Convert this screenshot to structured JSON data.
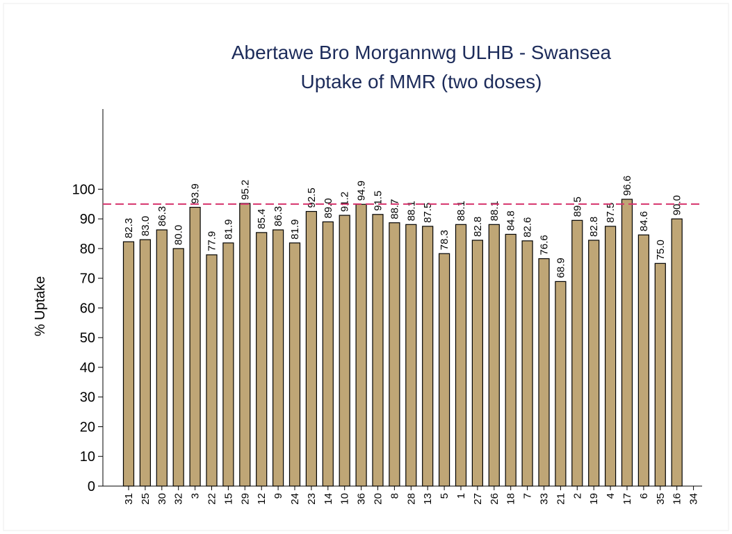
{
  "chart_data": {
    "type": "bar",
    "title": "Abertawe Bro Morgannwg ULHB - Swansea",
    "subtitle": "Uptake of MMR (two doses)",
    "y_label": "% Uptake",
    "categories": [
      "31",
      "25",
      "30",
      "32",
      "3",
      "22",
      "15",
      "29",
      "12",
      "9",
      "24",
      "23",
      "14",
      "10",
      "36",
      "20",
      "8",
      "28",
      "13",
      "5",
      "1",
      "27",
      "26",
      "18",
      "7",
      "33",
      "21",
      "2",
      "19",
      "4",
      "17",
      "6",
      "35",
      "16",
      "34"
    ],
    "values": [
      82.3,
      83.0,
      86.3,
      80.0,
      93.9,
      77.9,
      81.9,
      95.2,
      85.4,
      86.3,
      81.9,
      92.5,
      89.0,
      91.2,
      94.9,
      91.5,
      88.7,
      88.1,
      87.5,
      78.3,
      88.1,
      82.8,
      88.1,
      84.8,
      82.6,
      76.6,
      68.9,
      89.5,
      82.8,
      87.5,
      96.6,
      84.6,
      75.0,
      90.0,
      null
    ],
    "value_labels": [
      "82.3",
      "83.0",
      "86.3",
      "80.0",
      "93.9",
      "77.9",
      "81.9",
      "95.2",
      "85.4",
      "86.3",
      "81.9",
      "92.5",
      "89.0",
      "91.2",
      "94.9",
      "91.5",
      "88.7",
      "88.1",
      "87.5",
      "78.3",
      "88.1",
      "82.8",
      "88.1",
      "84.8",
      "82.6",
      "76.6",
      "68.9",
      "89.5",
      "82.8",
      "87.5",
      "96.6",
      "84.6",
      "75.0",
      "90.0",
      null
    ],
    "color": "#bfa676",
    "ylim": [
      0,
      127
    ],
    "yticks": [
      0,
      10,
      20,
      30,
      40,
      50,
      60,
      70,
      80,
      90,
      100
    ],
    "reference_line": 95,
    "reference_color": "#d6336c"
  }
}
